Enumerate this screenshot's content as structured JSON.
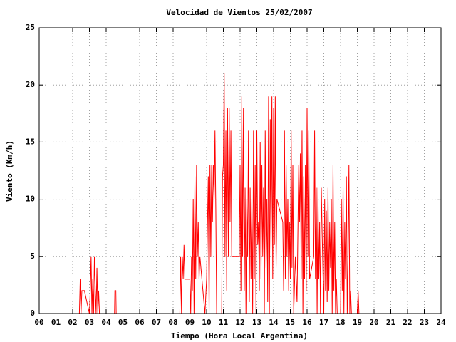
{
  "chart_data": {
    "type": "line",
    "title": "Velocidad de Vientos 25/02/2007",
    "xlabel": "Tiempo (Hora Local Argentina)",
    "ylabel": "Viento (Km/h)",
    "color": "#ff0000",
    "grid": true,
    "xlim": [
      0,
      24
    ],
    "ylim": [
      0,
      25
    ],
    "yticks": [
      0,
      5,
      10,
      15,
      20,
      25
    ],
    "xticks": [
      {
        "value": 0,
        "label": "00"
      },
      {
        "value": 1,
        "label": "01"
      },
      {
        "value": 2,
        "label": "02"
      },
      {
        "value": 3,
        "label": "03"
      },
      {
        "value": 4,
        "label": "04"
      },
      {
        "value": 5,
        "label": "05"
      },
      {
        "value": 6,
        "label": "06"
      },
      {
        "value": 7,
        "label": "07"
      },
      {
        "value": 8,
        "label": "08"
      },
      {
        "value": 9,
        "label": "09"
      },
      10,
      11,
      12,
      13,
      14,
      15,
      16,
      17,
      18,
      19,
      20,
      21,
      22,
      23,
      24
    ],
    "x": [
      2.4,
      2.45,
      2.5,
      2.55,
      2.7,
      3.0,
      3.05,
      3.1,
      3.15,
      3.2,
      3.25,
      3.3,
      3.35,
      3.4,
      3.45,
      3.5,
      3.55,
      3.6,
      4.5,
      4.52,
      4.58,
      4.6,
      8.4,
      8.45,
      8.5,
      8.55,
      8.6,
      8.65,
      8.7,
      9.0,
      9.05,
      9.1,
      9.15,
      9.2,
      9.25,
      9.3,
      9.35,
      9.4,
      9.45,
      9.5,
      9.55,
      9.6,
      9.9,
      10.0,
      10.1,
      10.15,
      10.2,
      10.25,
      10.3,
      10.35,
      10.4,
      10.45,
      10.5,
      10.55,
      10.6,
      10.9,
      10.95,
      11.0,
      11.05,
      11.1,
      11.15,
      11.2,
      11.25,
      11.3,
      11.35,
      11.4,
      11.45,
      11.5,
      11.6,
      11.95,
      12.0,
      12.05,
      12.1,
      12.15,
      12.2,
      12.25,
      12.3,
      12.35,
      12.4,
      12.45,
      12.5,
      12.55,
      12.6,
      12.65,
      12.7,
      12.75,
      12.8,
      12.85,
      12.9,
      12.95,
      13.0,
      13.05,
      13.1,
      13.15,
      13.2,
      13.25,
      13.3,
      13.35,
      13.4,
      13.45,
      13.5,
      13.55,
      13.6,
      13.65,
      13.7,
      13.75,
      13.8,
      13.85,
      13.9,
      13.95,
      14.0,
      14.05,
      14.1,
      14.15,
      14.2,
      14.55,
      14.6,
      14.65,
      14.7,
      14.75,
      14.8,
      14.85,
      14.9,
      14.95,
      15.0,
      15.05,
      15.1,
      15.15,
      15.2,
      15.3,
      15.4,
      15.5,
      15.55,
      15.6,
      15.65,
      15.7,
      15.75,
      15.8,
      15.85,
      15.9,
      15.95,
      16.0,
      16.05,
      16.1,
      16.15,
      16.4,
      16.45,
      16.5,
      16.55,
      16.6,
      16.65,
      16.7,
      16.75,
      16.8,
      16.85,
      16.9,
      17.0,
      17.05,
      17.1,
      17.15,
      17.2,
      17.25,
      17.3,
      17.35,
      17.4,
      17.45,
      17.5,
      17.55,
      17.6,
      17.65,
      17.7,
      17.75,
      17.8,
      18.0,
      18.05,
      18.1,
      18.15,
      18.2,
      18.25,
      18.3,
      18.35,
      18.4,
      18.45,
      18.5,
      18.55,
      18.6,
      18.65,
      18.7,
      19.0,
      19.05,
      19.1
    ],
    "values": [
      0,
      3,
      0,
      2,
      2,
      0,
      2,
      5,
      0,
      3,
      0,
      5,
      2,
      0,
      4,
      0,
      2,
      0,
      0,
      2,
      2,
      0,
      0,
      5,
      0,
      5,
      3,
      6,
      3,
      3,
      0,
      5,
      2,
      10,
      0,
      12,
      3,
      13,
      5,
      8,
      3,
      5,
      0,
      3,
      12,
      0,
      13,
      5,
      13,
      8,
      13,
      10,
      16,
      9,
      0,
      0,
      12,
      13,
      21,
      5,
      16,
      2,
      18,
      5,
      18,
      8,
      16,
      5,
      5,
      5,
      13,
      2,
      19,
      5,
      18,
      2,
      11,
      0,
      10,
      5,
      16,
      1,
      11,
      3,
      10,
      0,
      16,
      3,
      13,
      0,
      16,
      6,
      8,
      2,
      15,
      3,
      13,
      5,
      11,
      0,
      16,
      4,
      10,
      1,
      19,
      0,
      17,
      5,
      19,
      3,
      18,
      6,
      19,
      4,
      10,
      8,
      2,
      16,
      3,
      13,
      5,
      10,
      2,
      8,
      3,
      16,
      4,
      13,
      0,
      5,
      1,
      13,
      8,
      14,
      3,
      16,
      0,
      12,
      3,
      13,
      2,
      18,
      5,
      16,
      3,
      5,
      16,
      3,
      11,
      0,
      11,
      3,
      8,
      0,
      11,
      7,
      0,
      10,
      2,
      9,
      1,
      11,
      2,
      8,
      4,
      10,
      0,
      13,
      2,
      8,
      0,
      3,
      0,
      0,
      10,
      2,
      11,
      0,
      8,
      3,
      12,
      0,
      5,
      13,
      0,
      2,
      0,
      0,
      0,
      2,
      0
    ]
  }
}
